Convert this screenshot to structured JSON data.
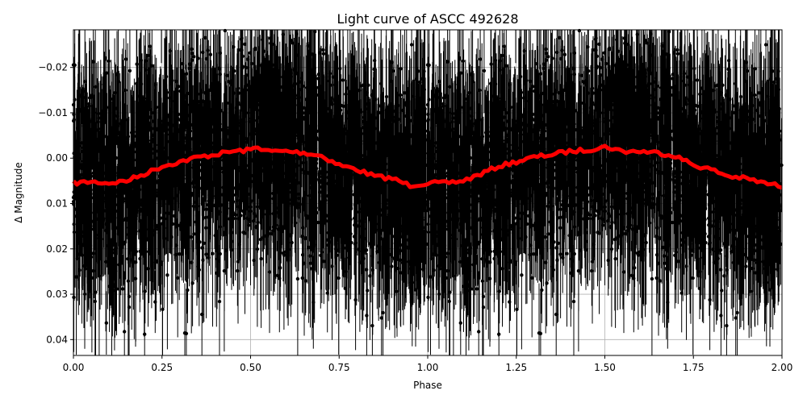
{
  "chart_data": {
    "type": "scatter",
    "title": "Light curve of ASCC 492628",
    "xlabel": "Phase",
    "ylabel": "Δ Magnitude",
    "xlim": [
      0.0,
      2.0
    ],
    "ylim": [
      0.0435,
      -0.0283
    ],
    "y_inverted": true,
    "grid": true,
    "x_ticks": [
      "0.00",
      "0.25",
      "0.50",
      "0.75",
      "1.00",
      "1.25",
      "1.50",
      "1.75",
      "2.00"
    ],
    "x_tick_values": [
      0.0,
      0.25,
      0.5,
      0.75,
      1.0,
      1.25,
      1.5,
      1.75,
      2.0
    ],
    "y_ticks": [
      "−0.02",
      "−0.01",
      "0.00",
      "0.01",
      "0.02",
      "0.03",
      "0.04"
    ],
    "y_tick_values": [
      -0.02,
      -0.01,
      0.0,
      0.01,
      0.02,
      0.03,
      0.04
    ],
    "series": [
      {
        "name": "observations",
        "style": "black points with vertical error bars",
        "color": "#000000",
        "description": "Dense phase-folded photometry, scatter spanning roughly -0.028 to 0.044 with error bars; majority concentrated between -0.015 and 0.025"
      },
      {
        "name": "binned model",
        "style": "thick red line",
        "color": "#ff0000",
        "x": [
          0.0,
          0.05,
          0.1,
          0.15,
          0.2,
          0.25,
          0.3,
          0.35,
          0.4,
          0.45,
          0.5,
          0.52,
          0.55,
          0.6,
          0.65,
          0.7,
          0.75,
          0.8,
          0.85,
          0.9,
          0.95,
          1.0,
          1.05,
          1.1,
          1.15,
          1.2,
          1.25,
          1.3,
          1.35,
          1.4,
          1.45,
          1.5,
          1.52,
          1.55,
          1.6,
          1.65,
          1.7,
          1.75,
          1.8,
          1.85,
          1.9,
          1.95,
          2.0
        ],
        "values": [
          0.0055,
          0.0052,
          0.0055,
          0.005,
          0.0035,
          0.0018,
          0.0008,
          -0.0002,
          -0.0008,
          -0.0015,
          -0.0018,
          -0.0025,
          -0.0015,
          -0.0015,
          -0.0012,
          -0.0005,
          0.0015,
          0.0025,
          0.004,
          0.0045,
          0.006,
          0.0055,
          0.0055,
          0.005,
          0.0035,
          0.0018,
          0.0008,
          -0.0002,
          -0.0008,
          -0.0015,
          -0.0018,
          -0.0025,
          -0.0022,
          -0.0015,
          -0.0015,
          -0.0012,
          -0.0005,
          0.0015,
          0.0025,
          0.004,
          0.0045,
          0.0055,
          0.0062
        ]
      }
    ]
  }
}
